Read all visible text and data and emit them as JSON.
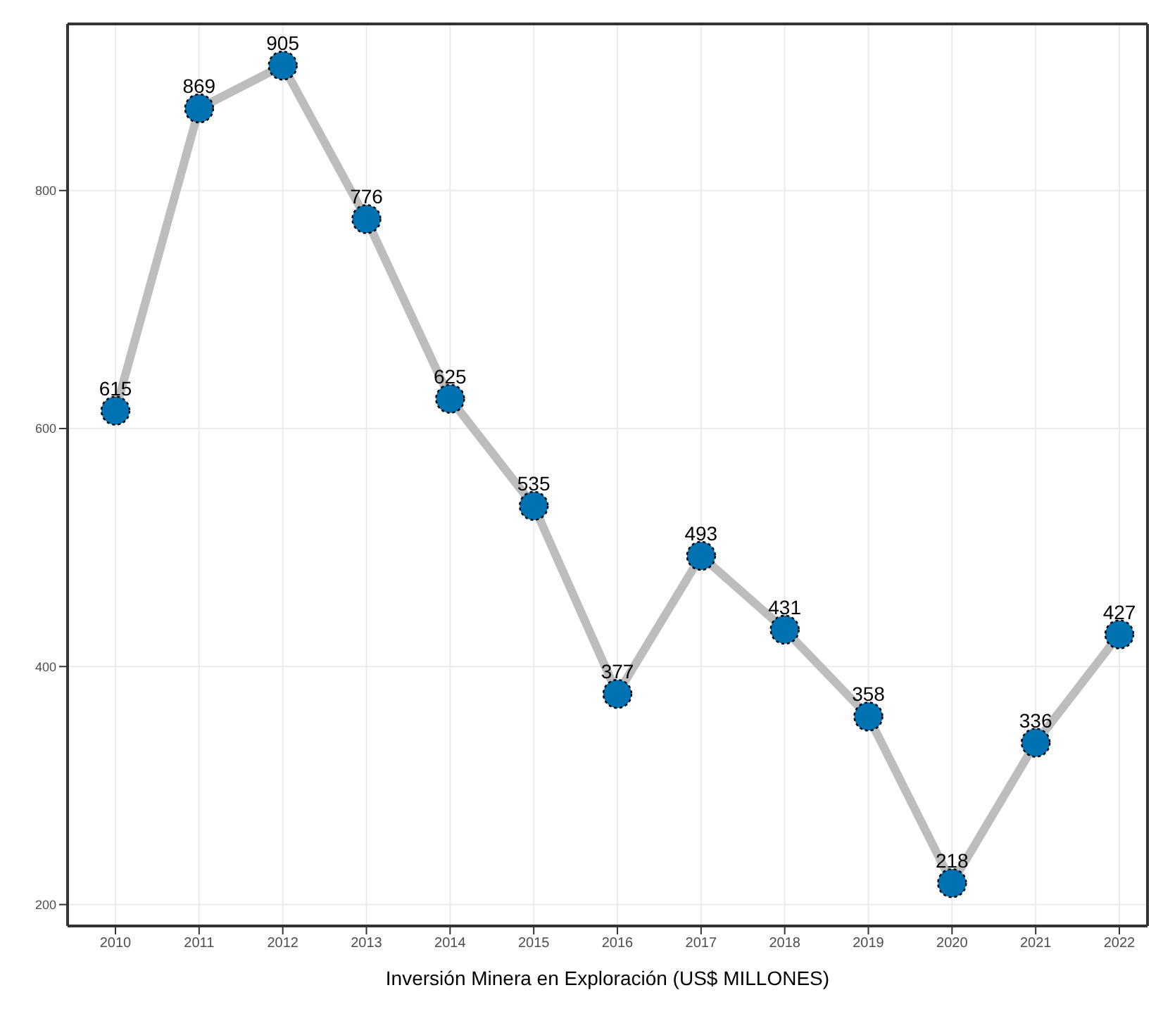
{
  "chart_data": {
    "type": "line",
    "xlabel": "Inversión Minera en Exploración (US$ MILLONES)",
    "categories": [
      "2010",
      "2011",
      "2012",
      "2013",
      "2014",
      "2015",
      "2016",
      "2017",
      "2018",
      "2019",
      "2020",
      "2021",
      "2022"
    ],
    "series": [
      {
        "color": "#bdbdbd",
        "colors": [
          "#0072b2",
          "#0072b2",
          "#0072b2",
          "#0072b2",
          "#0072b2",
          "#0072b2",
          "#0072b2",
          "#0072b2",
          "#0072b2",
          "#0072b2",
          "#0072b2",
          "#0072b2",
          "#0072b2"
        ],
        "values": [
          615,
          869,
          905,
          776,
          625,
          535,
          377,
          493,
          431,
          358,
          218,
          336,
          427
        ]
      }
    ],
    "marker": "circle",
    "line_style": "solid",
    "data_labels": true,
    "ylim": [
      182,
      940
    ],
    "yticks": [
      200,
      400,
      600,
      800
    ],
    "grid": true
  }
}
